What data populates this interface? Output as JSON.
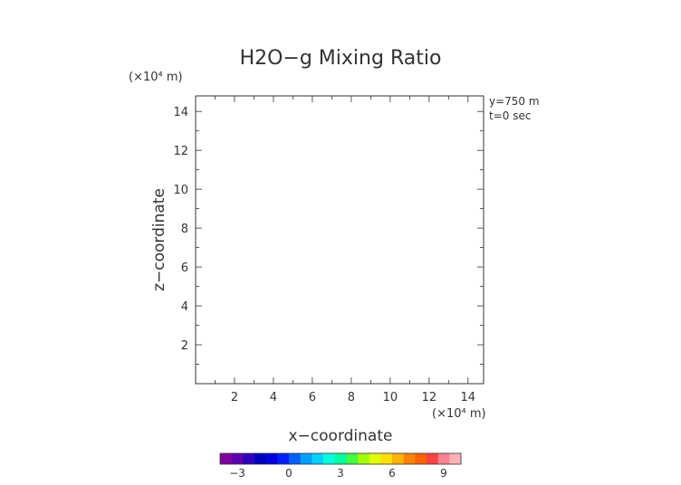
{
  "chart_data": {
    "type": "heatmap",
    "title": "H2O−g Mixing Ratio",
    "xlabel": "x−coordinate",
    "ylabel": "z−coordinate",
    "x_units_label": "(×10⁴ m)",
    "y_units_label": "(×10⁴ m)",
    "annotations": [
      "y=750 m",
      "t=0 sec"
    ],
    "xlim": [
      0,
      14.8
    ],
    "ylim": [
      0,
      14.8
    ],
    "x_ticks": [
      2,
      4,
      6,
      8,
      10,
      12,
      14
    ],
    "y_ticks": [
      2,
      4,
      6,
      8,
      10,
      12,
      14
    ],
    "x_tick_labels": [
      "2",
      "4",
      "6",
      "8",
      "10",
      "12",
      "14"
    ],
    "y_tick_labels": [
      "2",
      "4",
      "6",
      "8",
      "10",
      "12",
      "14"
    ],
    "grid": false,
    "colorbar": {
      "range": [
        -4,
        10
      ],
      "tick_values": [
        -3,
        0,
        3,
        6,
        9
      ],
      "tick_labels": [
        "−3",
        "0",
        "3",
        "6",
        "9"
      ],
      "colors": [
        "#8000a0",
        "#6000b0",
        "#3000c0",
        "#0000c0",
        "#0000e0",
        "#0020ff",
        "#0060ff",
        "#00a0ff",
        "#00d0ff",
        "#00ffe0",
        "#00ffa0",
        "#40ff40",
        "#a0ff00",
        "#e0ff00",
        "#ffe000",
        "#ffb000",
        "#ff8000",
        "#ff6000",
        "#ff4040",
        "#ff8090",
        "#ffb0b8"
      ]
    },
    "values": []
  }
}
